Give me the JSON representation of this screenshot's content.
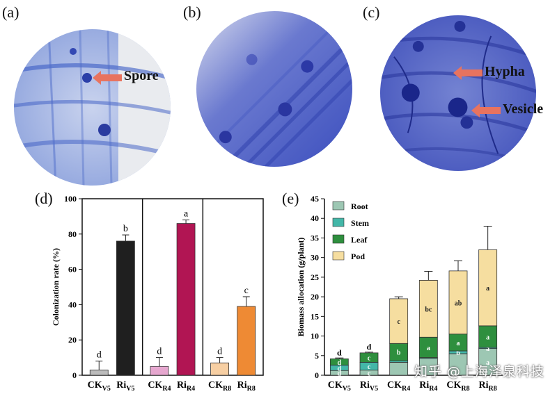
{
  "panels": {
    "a": "(a)",
    "b": "(b)",
    "c": "(c)",
    "d": "(d)",
    "e": "(e)"
  },
  "annotations": {
    "spore": "Spore",
    "hypha": "Hypha",
    "vesicle": "Vesicle"
  },
  "colors": {
    "stain": "#3b4fc2",
    "arrow": "#e8735f"
  },
  "watermark": "知乎 @上海泽泉科技",
  "chart_data": [
    {
      "type": "bar",
      "ylabel": "Colonization rate (%)",
      "ylim": [
        0,
        100
      ],
      "yticks": [
        0,
        20,
        40,
        60,
        80,
        100
      ],
      "categories": [
        {
          "base": "CK",
          "sub": "V5"
        },
        {
          "base": "Ri",
          "sub": "V5"
        },
        {
          "base": "CK",
          "sub": "R4"
        },
        {
          "base": "Ri",
          "sub": "R4"
        },
        {
          "base": "CK",
          "sub": "R8"
        },
        {
          "base": "Ri",
          "sub": "R8"
        }
      ],
      "values": [
        3,
        76,
        5,
        86,
        7,
        39
      ],
      "errors": [
        5,
        3.5,
        5,
        2,
        3,
        5.5
      ],
      "letters": [
        "d",
        "b",
        "d",
        "a",
        "d",
        "c"
      ],
      "colors": [
        "#bcbcbc",
        "#1f1f1f",
        "#e6a7cf",
        "#b11553",
        "#f7cfa3",
        "#ee8a34"
      ],
      "grid": false
    },
    {
      "type": "bar",
      "stacked": true,
      "ylabel": "Biomass allocation (g/plant)",
      "ylim": [
        0,
        45
      ],
      "yticks": [
        0,
        5,
        10,
        15,
        20,
        25,
        30,
        35,
        40,
        45
      ],
      "categories": [
        {
          "base": "CK",
          "sub": "V5"
        },
        {
          "base": "Ri",
          "sub": "V5"
        },
        {
          "base": "CK",
          "sub": "R4"
        },
        {
          "base": "Ri",
          "sub": "R4"
        },
        {
          "base": "CK",
          "sub": "R8"
        },
        {
          "base": "Ri",
          "sub": "R8"
        }
      ],
      "series": [
        {
          "name": "Root",
          "color": "#9dc7b3",
          "values": [
            1.2,
            1.3,
            3.3,
            4.3,
            5.5,
            6.8
          ],
          "errors": [
            0.2,
            0.2,
            0.4,
            0.4,
            0.5,
            0.8
          ],
          "letters": [
            "d",
            "c",
            "",
            "",
            "",
            "a"
          ]
        },
        {
          "name": "Stem",
          "color": "#43b7a8",
          "values": [
            1.4,
            2.0,
            0.4,
            0.2,
            0.7,
            0.3
          ],
          "errors": [
            0.2,
            0.2,
            0.2,
            0.2,
            0.3,
            0.4
          ],
          "letters": [
            "d",
            "c",
            "",
            "",
            "b",
            "a"
          ]
        },
        {
          "name": "Leaf",
          "color": "#2e8f3e",
          "values": [
            1.6,
            2.4,
            4.4,
            5.2,
            4.3,
            5.5
          ],
          "errors": [
            0.2,
            0.2,
            0.3,
            0.3,
            0.3,
            0.3
          ],
          "letters": [
            "d",
            "c",
            "b",
            "a",
            "a",
            "a"
          ]
        },
        {
          "name": "Pod",
          "color": "#f6dea0",
          "values": [
            0,
            0,
            11.4,
            14.5,
            16.1,
            19.4
          ],
          "errors": [
            0,
            0,
            0.5,
            2.3,
            2.6,
            6.0
          ],
          "letters": [
            "",
            "",
            "c",
            "bc",
            "ab",
            "a"
          ]
        }
      ],
      "top_letters": [
        "d",
        "d",
        "",
        "",
        "",
        ""
      ],
      "legend_position": "top-left",
      "grid": false
    }
  ]
}
